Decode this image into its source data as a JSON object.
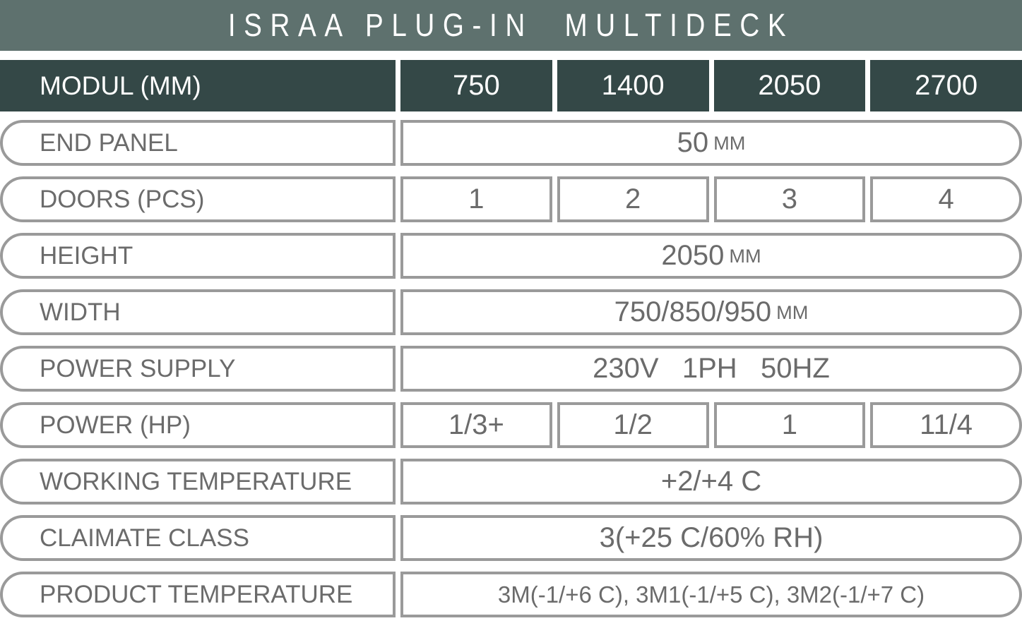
{
  "title": "ISRAA PLUG-IN  MULTIDECK",
  "colors": {
    "title_bar_bg": "#5e716e",
    "header_bg": "#344847",
    "pill_border": "#9a9a9a",
    "body_text": "#6b6b6b",
    "header_text": "#ffffff"
  },
  "header": {
    "label": "MODUL (MM)",
    "columns": [
      "750",
      "1400",
      "2050",
      "2700"
    ]
  },
  "rows": [
    {
      "label": "END PANEL",
      "value": "50",
      "unit": "MM"
    },
    {
      "label": "DOORS (PCS)",
      "cells": [
        "1",
        "2",
        "3",
        "4"
      ]
    },
    {
      "label": "HEIGHT",
      "value": "2050",
      "unit": "MM"
    },
    {
      "label": "WIDTH",
      "value": "750/850/950",
      "unit": "MM"
    },
    {
      "label": "POWER SUPPLY",
      "value": "230V   1PH   50HZ"
    },
    {
      "label": "POWER (HP)",
      "cells": [
        "1/3+",
        "1/2",
        "1",
        "11/4"
      ]
    },
    {
      "label": "WORKING TEMPERATURE",
      "value": "+2/+4 C"
    },
    {
      "label": "CLAIMATE CLASS",
      "value": "3(+25 C/60% RH)"
    },
    {
      "label": "PRODUCT TEMPERATURE",
      "value": "3M(-1/+6 C), 3M1(-1/+5 C), 3M2(-1/+7 C)"
    }
  ]
}
